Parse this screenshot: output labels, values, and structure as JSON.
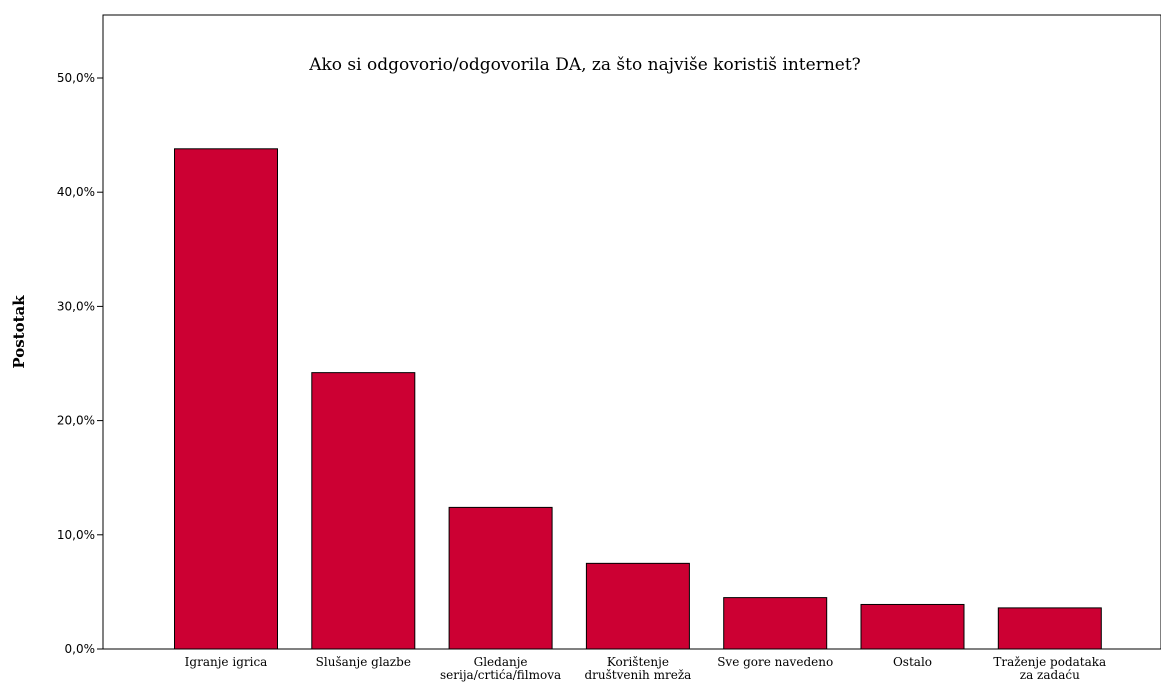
{
  "chart_data": {
    "type": "bar",
    "title": "Ako si odgovorio/odgovorila DA, za što najviše koristiš internet?",
    "xlabel": "",
    "ylabel": "Postotak",
    "categories": [
      [
        "Igranje igrica"
      ],
      [
        "Slušanje glazbe"
      ],
      [
        "Gledanje",
        "serija/crtića/filmova"
      ],
      [
        "Korištenje",
        "društvenih mreža"
      ],
      [
        "Sve gore navedeno"
      ],
      [
        "Ostalo"
      ],
      [
        "Traženje podataka",
        "za zadaću"
      ]
    ],
    "values": [
      43.8,
      24.2,
      12.4,
      7.5,
      4.5,
      3.9,
      3.6
    ],
    "ylim": [
      0,
      55
    ],
    "yticks": [
      0,
      10,
      20,
      30,
      40,
      50
    ],
    "ytick_labels": [
      "0,0%",
      "10,0%",
      "20,0%",
      "30,0%",
      "40,0%",
      "50,0%"
    ],
    "grid": false,
    "colors": {
      "bar": "#cc0033",
      "bar_stroke": "#000000",
      "axis": "#000000"
    }
  }
}
